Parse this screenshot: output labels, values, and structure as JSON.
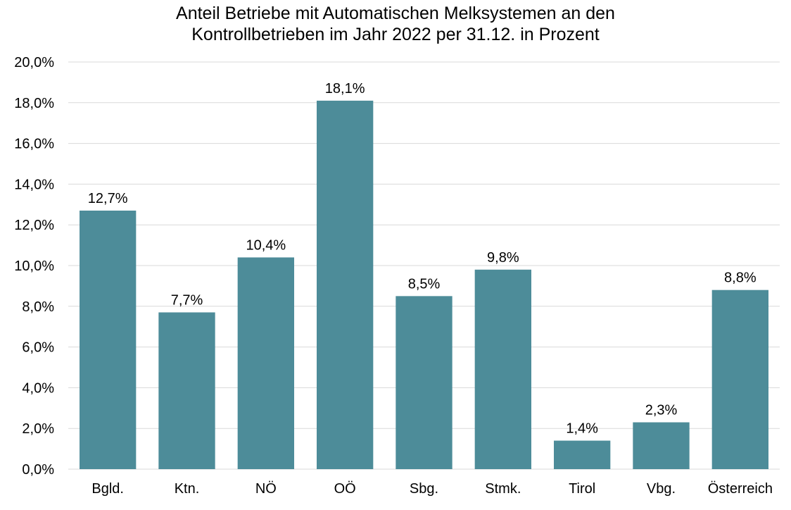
{
  "chart_data": {
    "type": "bar",
    "title_lines": [
      "Anteil Betriebe mit Automatischen Melksystemen an den",
      "Kontrollbetrieben im Jahr 2022 per 31.12. in Prozent"
    ],
    "categories": [
      "Bgld.",
      "Ktn.",
      "NÖ",
      "OÖ",
      "Sbg.",
      "Stmk.",
      "Tirol",
      "Vbg.",
      "Österreich"
    ],
    "values": [
      12.7,
      7.7,
      10.4,
      18.1,
      8.5,
      9.8,
      1.4,
      2.3,
      8.8
    ],
    "value_labels": [
      "12,7%",
      "7,7%",
      "10,4%",
      "18,1%",
      "8,5%",
      "9,8%",
      "1,4%",
      "2,3%",
      "8,8%"
    ],
    "y_ticks": [
      0,
      2,
      4,
      6,
      8,
      10,
      12,
      14,
      16,
      18,
      20
    ],
    "y_tick_labels": [
      "0,0%",
      "2,0%",
      "4,0%",
      "6,0%",
      "8,0%",
      "10,0%",
      "12,0%",
      "14,0%",
      "16,0%",
      "18,0%",
      "20,0%"
    ],
    "ylim": [
      0,
      20
    ],
    "xlabel": "",
    "ylabel": "",
    "grid": true,
    "legend": "none",
    "colors": {
      "bar": "#4d8c99",
      "grid": "#d9d9d9"
    }
  }
}
